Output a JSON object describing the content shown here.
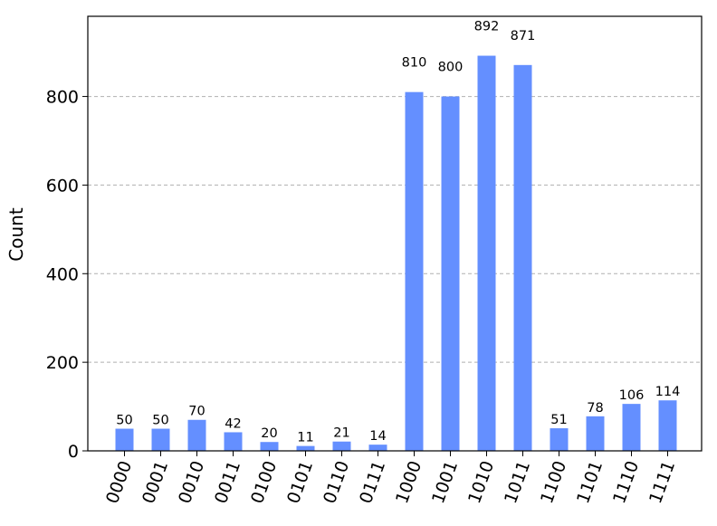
{
  "chart_data": {
    "type": "bar",
    "categories": [
      "0000",
      "0001",
      "0010",
      "0011",
      "0100",
      "0101",
      "0110",
      "0111",
      "1000",
      "1001",
      "1010",
      "1011",
      "1100",
      "1101",
      "1110",
      "1111"
    ],
    "values": [
      50,
      50,
      70,
      42,
      20,
      11,
      21,
      14,
      810,
      800,
      892,
      871,
      51,
      78,
      106,
      114
    ],
    "data_labels": [
      "50",
      "50",
      "70",
      "42",
      "20",
      "11",
      "21",
      "14",
      "810",
      "800",
      "892",
      "871",
      "51",
      "78",
      "106",
      "114"
    ],
    "title": "",
    "xlabel": "",
    "ylabel": "Count",
    "ylim": [
      0,
      981
    ],
    "yticks": [
      0,
      200,
      400,
      600,
      800
    ],
    "ytick_labels": [
      "0",
      "200",
      "400",
      "600",
      "800"
    ],
    "grid": "horizontal dashed",
    "bar_color": "#648fff",
    "grid_color": "#b0b0b0"
  }
}
